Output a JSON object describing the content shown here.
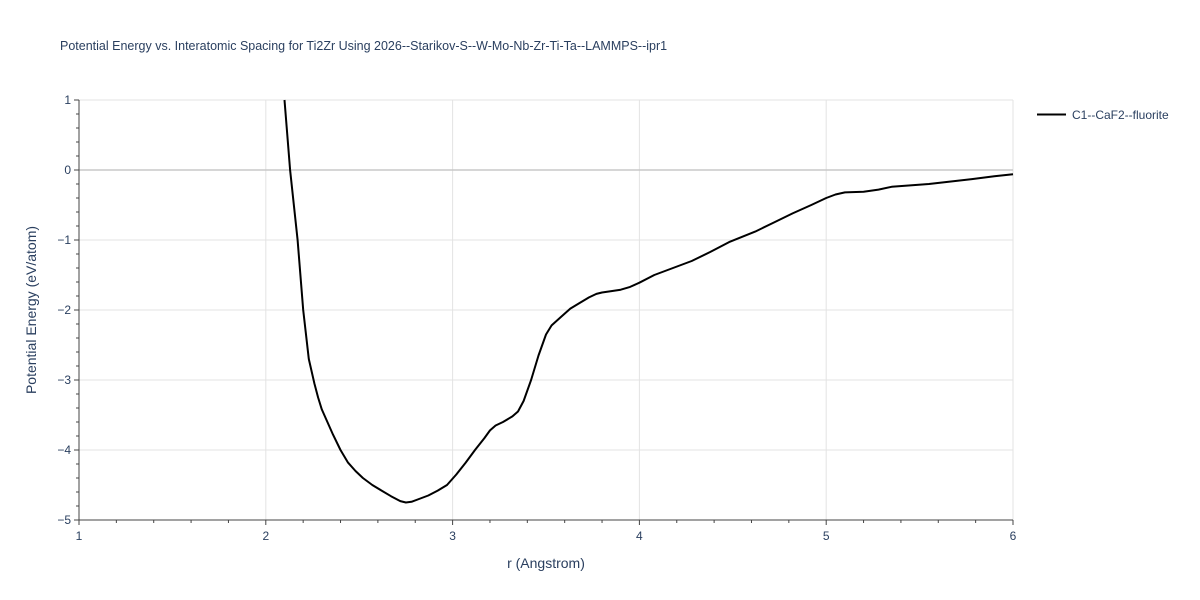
{
  "chart_data": {
    "type": "line",
    "title": "Potential Energy vs. Interatomic Spacing for Ti2Zr Using 2026--Starikov-S--W-Mo-Nb-Zr-Ti-Ta--LAMMPS--ipr1",
    "xlabel": "r (Angstrom)",
    "ylabel": "Potential Energy (eV/atom)",
    "xlim": [
      1,
      6
    ],
    "ylim": [
      -5,
      1
    ],
    "xticks": [
      1,
      2,
      3,
      4,
      5,
      6
    ],
    "xtick_labels": [
      "1",
      "2",
      "3",
      "4",
      "5",
      "6"
    ],
    "yticks": [
      1,
      0,
      -1,
      -2,
      -3,
      -4,
      -5
    ],
    "ytick_labels": [
      "1",
      "0",
      "−1",
      "−2",
      "−3",
      "−4",
      "−5"
    ],
    "grid": true,
    "legend_position": "top-right, outside plot",
    "series": [
      {
        "name": "C1--CaF2--fluorite",
        "color": "#000000",
        "x": [
          2.1,
          2.13,
          2.17,
          2.2,
          2.23,
          2.26,
          2.28,
          2.3,
          2.33,
          2.36,
          2.4,
          2.44,
          2.48,
          2.52,
          2.57,
          2.62,
          2.67,
          2.72,
          2.75,
          2.78,
          2.82,
          2.87,
          2.92,
          2.97,
          3.02,
          3.07,
          3.12,
          3.17,
          3.2,
          3.23,
          3.27,
          3.32,
          3.35,
          3.38,
          3.42,
          3.46,
          3.5,
          3.53,
          3.58,
          3.63,
          3.68,
          3.73,
          3.77,
          3.8,
          3.85,
          3.9,
          3.95,
          4.0,
          4.08,
          4.18,
          4.28,
          4.38,
          4.48,
          4.62,
          4.72,
          4.82,
          4.92,
          5.0,
          5.05,
          5.1,
          5.2,
          5.28,
          5.35,
          5.45,
          5.55,
          5.65,
          5.78,
          5.9,
          6.0
        ],
        "y": [
          1.0,
          0.0,
          -1.0,
          -2.0,
          -2.7,
          -3.05,
          -3.25,
          -3.42,
          -3.6,
          -3.78,
          -4.0,
          -4.18,
          -4.3,
          -4.4,
          -4.5,
          -4.58,
          -4.66,
          -4.73,
          -4.75,
          -4.74,
          -4.7,
          -4.65,
          -4.58,
          -4.5,
          -4.35,
          -4.18,
          -4.0,
          -3.83,
          -3.72,
          -3.65,
          -3.6,
          -3.52,
          -3.45,
          -3.3,
          -3.0,
          -2.65,
          -2.35,
          -2.22,
          -2.1,
          -1.98,
          -1.9,
          -1.82,
          -1.77,
          -1.75,
          -1.73,
          -1.71,
          -1.67,
          -1.61,
          -1.5,
          -1.4,
          -1.3,
          -1.17,
          -1.03,
          -0.88,
          -0.75,
          -0.62,
          -0.5,
          -0.4,
          -0.35,
          -0.32,
          -0.31,
          -0.28,
          -0.24,
          -0.22,
          -0.2,
          -0.17,
          -0.13,
          -0.09,
          -0.06
        ]
      }
    ]
  }
}
